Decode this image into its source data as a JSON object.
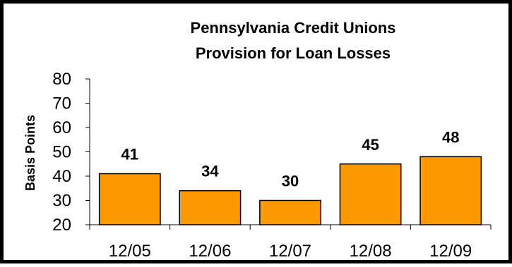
{
  "chart_data": {
    "type": "bar",
    "title": [
      "Pennsylvania Credit Unions",
      "Provision for Loan Losses"
    ],
    "xlabel": "",
    "ylabel": "Basis Points",
    "categories": [
      "12/05",
      "12/06",
      "12/07",
      "12/08",
      "12/09"
    ],
    "values": [
      41,
      34,
      30,
      45,
      48
    ],
    "data_labels": [
      "41",
      "34",
      "30",
      "45",
      "48"
    ],
    "yticks": [
      "20",
      "30",
      "40",
      "50",
      "60",
      "70",
      "80"
    ],
    "ylim": [
      20,
      80
    ],
    "grid": false,
    "legend": "none",
    "bar_color": "#FF9900",
    "bar_edge_color": "#000000"
  }
}
